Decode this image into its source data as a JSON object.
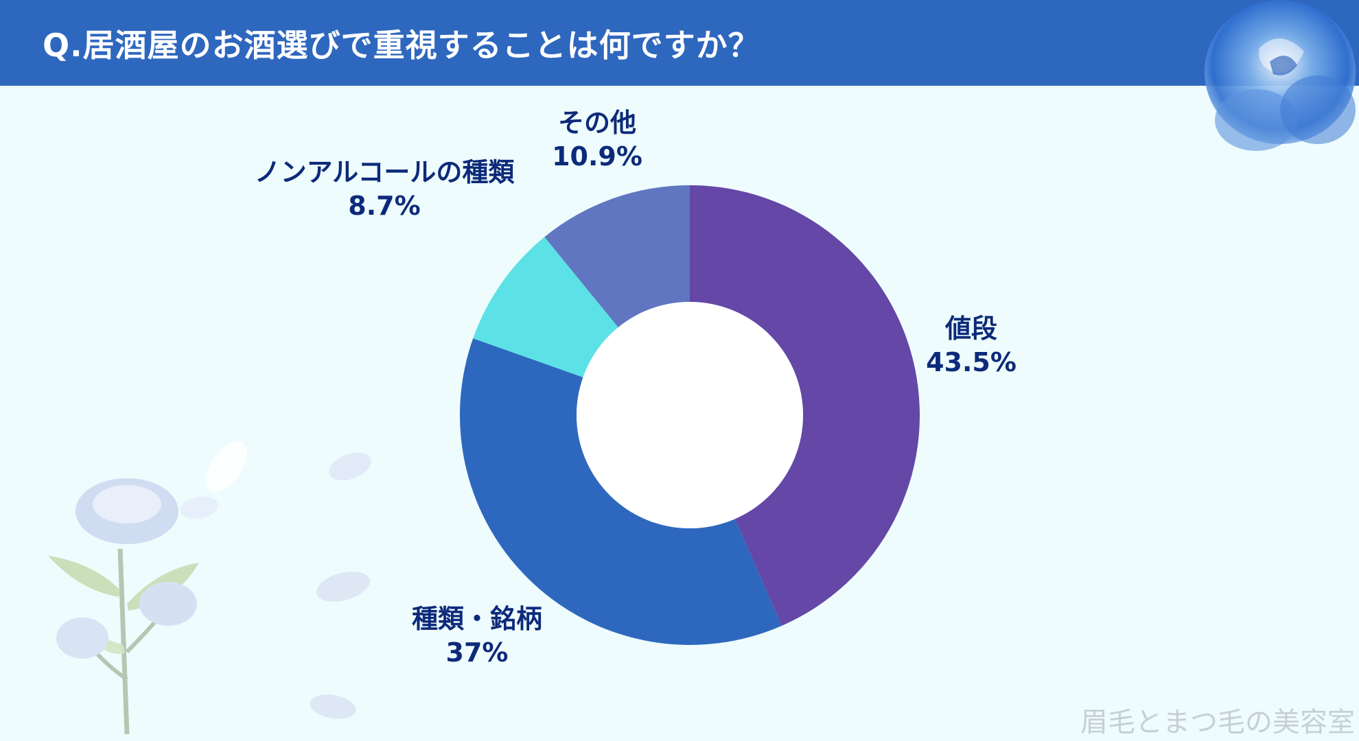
{
  "header": {
    "title": "Q.居酒屋のお酒選びで重視することは何ですか？"
  },
  "colors": {
    "header_bg": "#2e67be",
    "background": "#eefcfd",
    "label_text": "#0d2a7a"
  },
  "chart_data": {
    "type": "pie",
    "title": "",
    "donut": true,
    "slices": [
      {
        "label": "値段",
        "value": 43.5,
        "display": "43.5%",
        "color": "#6447a6"
      },
      {
        "label": "種類・銘柄",
        "value": 37,
        "display": "37%",
        "color": "#2e68be"
      },
      {
        "label": "ノンアルコールの種類",
        "value": 8.7,
        "display": "8.7%",
        "color": "#5ce2e6"
      },
      {
        "label": "その他",
        "value": 10.9,
        "display": "10.9%",
        "color": "#6076c1"
      }
    ]
  },
  "watermark": "眉毛とまつ毛の美容室",
  "decorations": {
    "top_right": "blue-rose-icon",
    "bottom_left": "blue-rose-branch-icon",
    "petals": "petal-icon"
  }
}
